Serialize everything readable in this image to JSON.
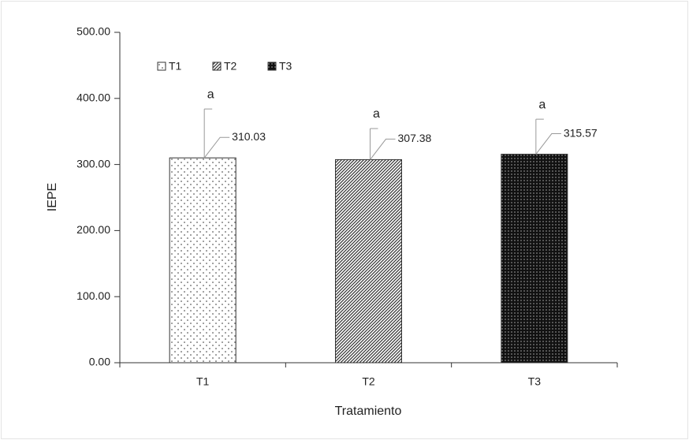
{
  "chart_data": {
    "type": "bar",
    "x_label": "Tratamiento",
    "y_label": "IEPE",
    "categories": [
      "T1",
      "T2",
      "T3"
    ],
    "values": [
      310.03,
      307.38,
      315.57
    ],
    "errors": [
      74,
      47,
      53
    ],
    "letters": [
      "a",
      "a",
      "a"
    ],
    "patterns": [
      "sparse-dots",
      "hatch",
      "dark-dots"
    ],
    "ylim": [
      0,
      500
    ],
    "yticks": [
      {
        "value": 0,
        "label": "0.00"
      },
      {
        "value": 100,
        "label": "100.00"
      },
      {
        "value": 200,
        "label": "200.00"
      },
      {
        "value": 300,
        "label": "300.00"
      },
      {
        "value": 400,
        "label": "400.00"
      },
      {
        "value": 500,
        "label": "500.00"
      }
    ],
    "grid": false,
    "legend": "top-left"
  }
}
